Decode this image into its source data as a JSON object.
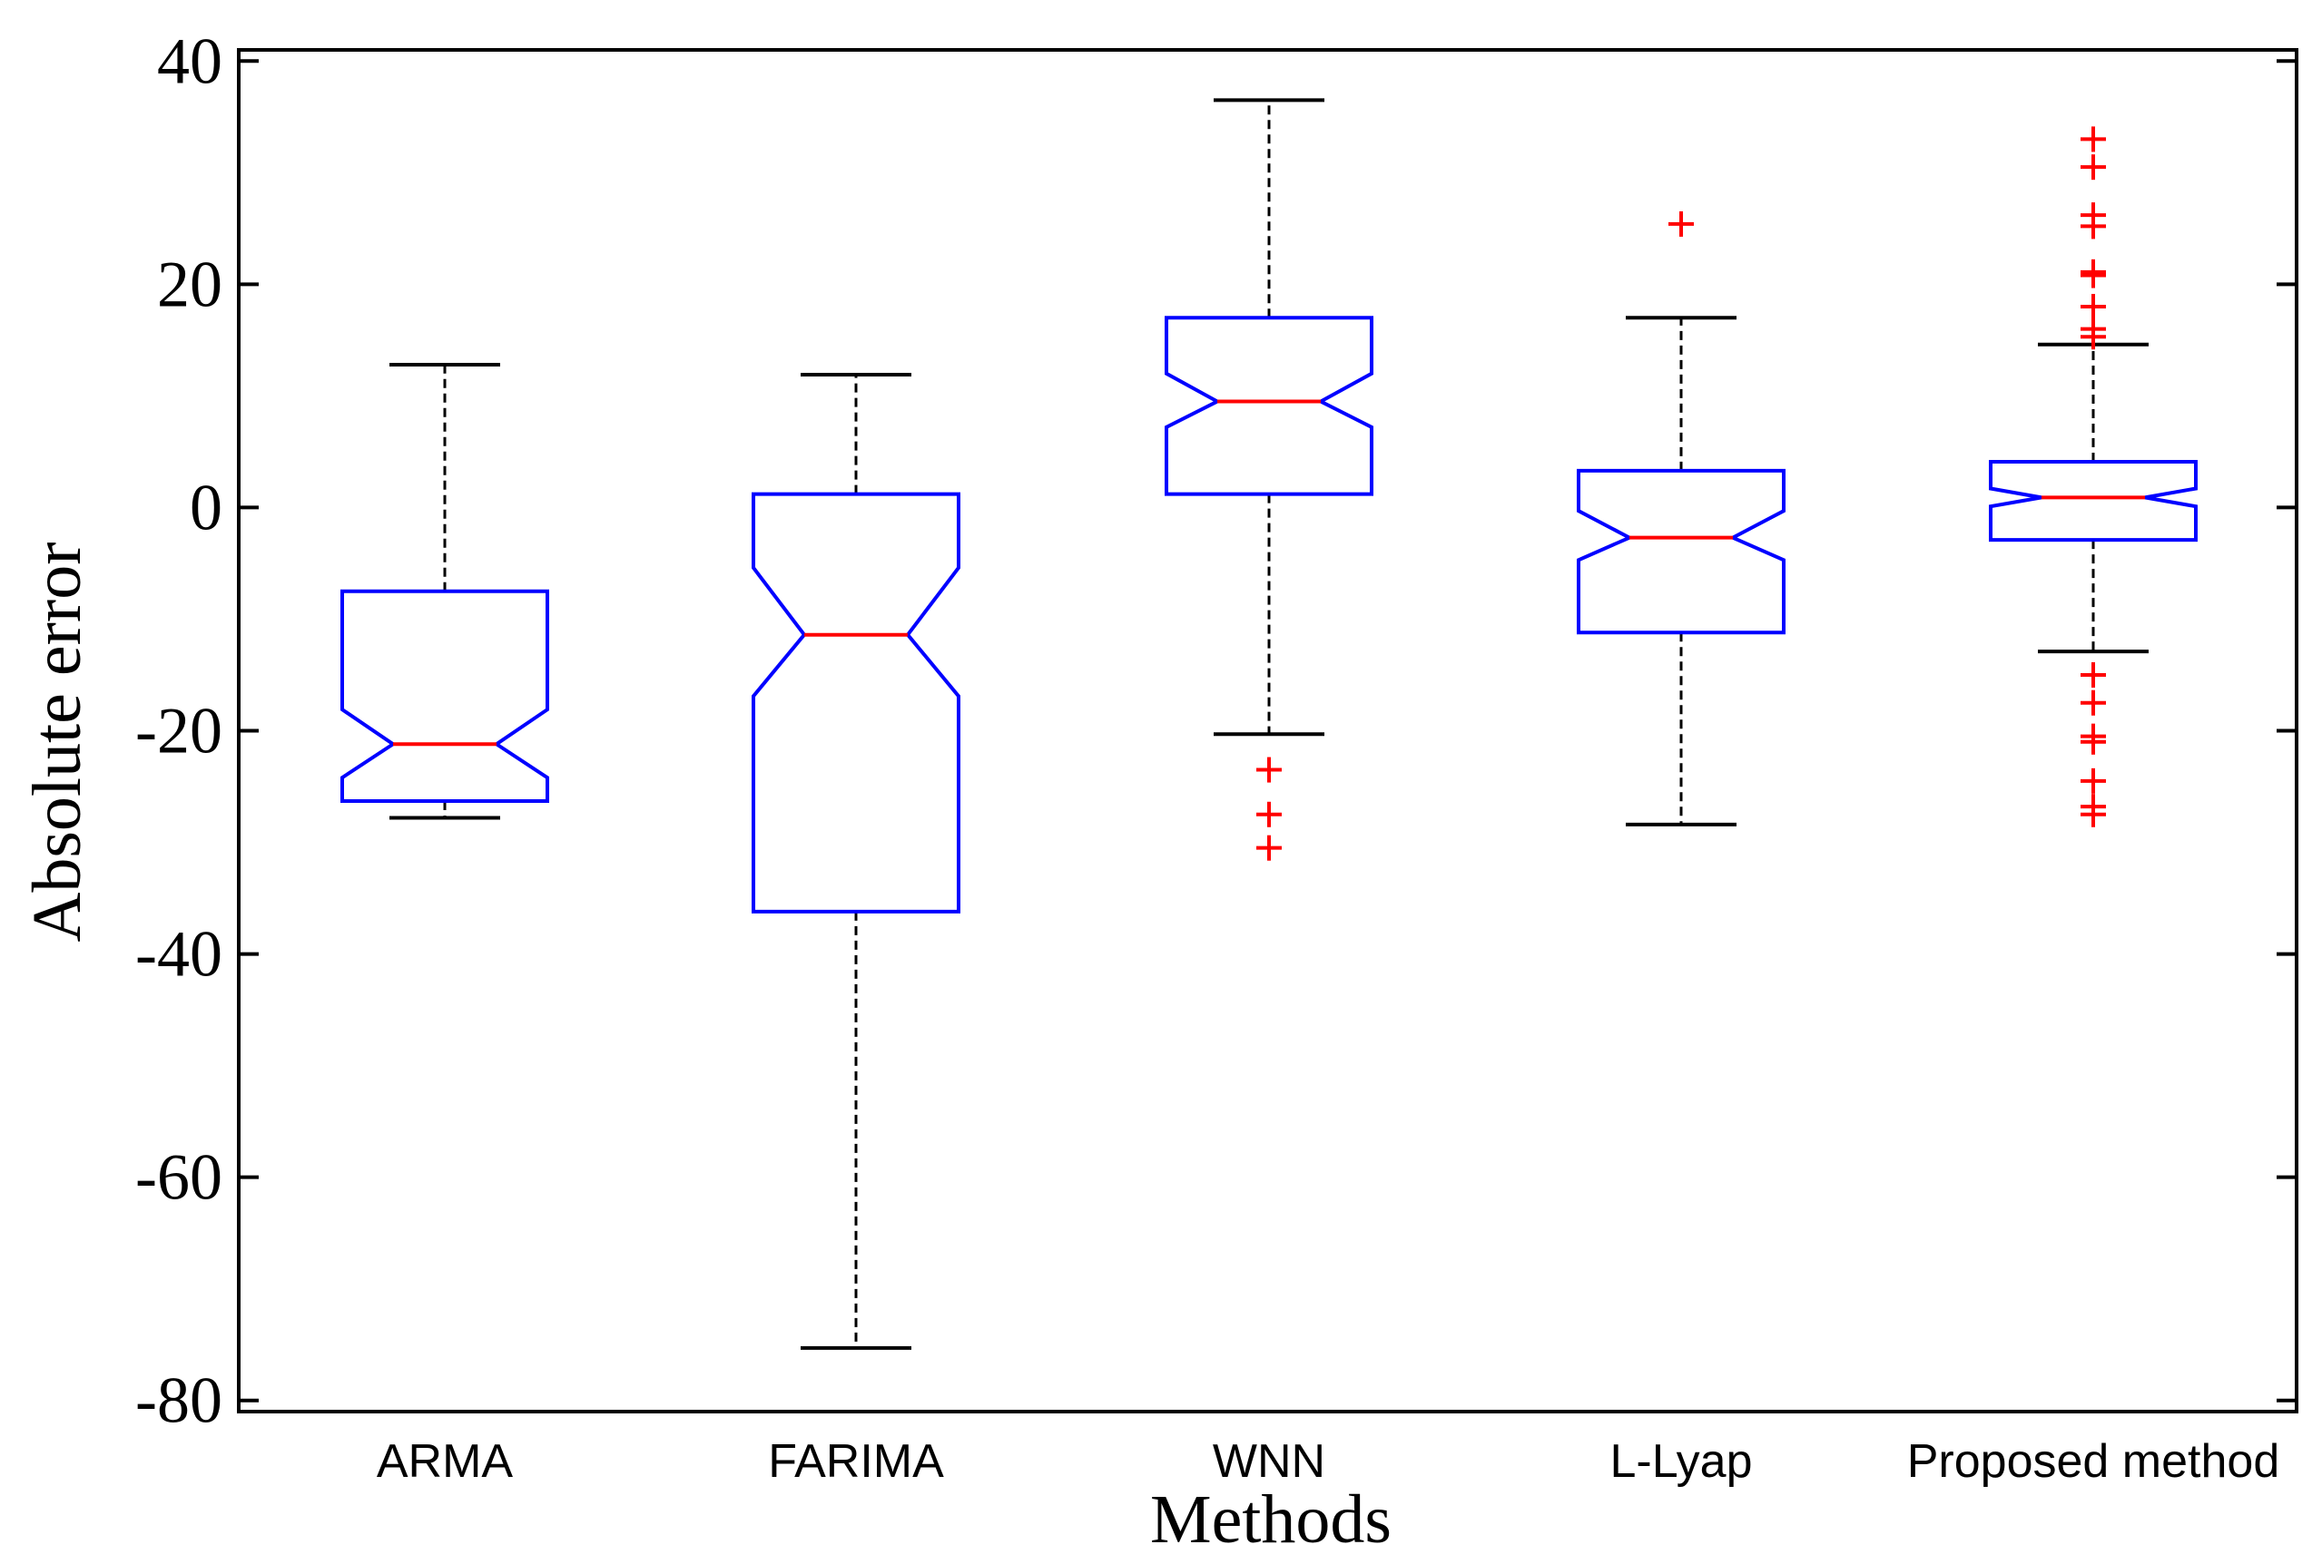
{
  "chart_data": {
    "type": "box",
    "notched": true,
    "xlabel": "Methods",
    "ylabel": "Absolute error",
    "ylim": [
      -81,
      41
    ],
    "yticks": [
      40,
      20,
      0,
      -20,
      -40,
      -60,
      -80
    ],
    "ytick_labels": [
      "40",
      "20",
      "0",
      "-20",
      "-40",
      "-60",
      "-80"
    ],
    "categories": [
      "ARMA",
      "FARIMA",
      "WNN",
      "L-Lyap",
      "Proposed method"
    ],
    "boxes": [
      {
        "name": "ARMA",
        "whisker_low": -27.8,
        "q1": -26.3,
        "median": -21.2,
        "q3": -7.5,
        "whisker_high": 12.8,
        "notch_low": -24.2,
        "notch_high": -18.1,
        "outliers": []
      },
      {
        "name": "FARIMA",
        "whisker_low": -75.3,
        "q1": -36.2,
        "median": -11.4,
        "q3": 1.2,
        "whisker_high": 11.9,
        "notch_low": -16.9,
        "notch_high": -5.4,
        "outliers": []
      },
      {
        "name": "WNN",
        "whisker_low": -20.3,
        "q1": 1.2,
        "median": 9.5,
        "q3": 17.0,
        "whisker_high": 36.5,
        "notch_low": 7.2,
        "notch_high": 12.0,
        "outliers": [
          -23.5,
          -27.5,
          -30.5
        ]
      },
      {
        "name": "L-Lyap",
        "whisker_low": -28.4,
        "q1": -11.2,
        "median": -2.7,
        "q3": 3.3,
        "whisker_high": 17.0,
        "notch_low": -4.7,
        "notch_high": -0.3,
        "outliers": [
          25.4
        ]
      },
      {
        "name": "Proposed method",
        "whisker_low": -12.9,
        "q1": -2.9,
        "median": 0.9,
        "q3": 4.1,
        "whisker_high": 14.6,
        "notch_low": 0.1,
        "notch_high": 1.7,
        "outliers": [
          33.0,
          30.5,
          26.2,
          25.2,
          21.1,
          20.8,
          18.0,
          16.0,
          15.3,
          -15.0,
          -17.5,
          -20.5,
          -21.0,
          -24.5,
          -26.8,
          -27.5
        ]
      }
    ],
    "colors": {
      "box": "#0000ff",
      "median": "#ff0000",
      "outlier": "#ff0000",
      "whisker": "#000000"
    },
    "grid": false
  }
}
